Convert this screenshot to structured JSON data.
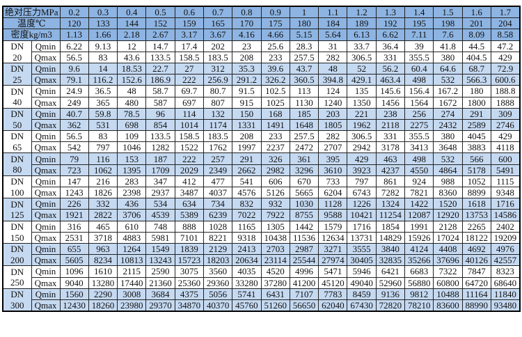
{
  "header": {
    "pressure_label": "绝对压力MPa",
    "temperature_label": "温度℃",
    "density_label": "密度kg/m3",
    "pressures": [
      "0.2",
      "0.3",
      "0.4",
      "0.5",
      "0.6",
      "0.7",
      "0.8",
      "0.9",
      "1",
      "1.1",
      "1.2",
      "1.3",
      "1.4",
      "1.5",
      "1.6",
      "1.7"
    ],
    "temperatures": [
      "120",
      "133",
      "144",
      "152",
      "159",
      "165",
      "170",
      "175",
      "180",
      "184",
      "189",
      "192",
      "195",
      "198",
      "201",
      "204"
    ],
    "densities": [
      "1.13",
      "1.66",
      "2.18",
      "2.67",
      "3.17",
      "3.67",
      "4.16",
      "4.66",
      "5.15",
      "5.64",
      "6.13",
      "6.62",
      "7.11",
      "7.6",
      "8.09",
      "8.58"
    ]
  },
  "dn_label": "DN",
  "qmin_label": "Qmin",
  "qmax_label": "Qmax",
  "colors": {
    "header": "#8db4e2",
    "band": "#c5d9f1",
    "white": "#ffffff"
  },
  "groups": [
    {
      "size": "20",
      "qmin": [
        "6.22",
        "9.13",
        "12",
        "14.7",
        "17.4",
        "202",
        "23",
        "25.6",
        "28.3",
        "31",
        "33.7",
        "36.4",
        "39",
        "41.8",
        "44.5",
        "47.2"
      ],
      "qmax": [
        "56.5",
        "83",
        "43.6",
        "133.5",
        "158.5",
        "183.5",
        "208",
        "233",
        "257.5",
        "282",
        "306.5",
        "331",
        "355.5",
        "380",
        "404.5",
        "429"
      ]
    },
    {
      "size": "25",
      "qmin": [
        "9.6",
        "14",
        "18.53",
        "22.7",
        "27",
        "312",
        "35.3",
        "39.6",
        "43.7",
        "48",
        "52",
        "56.2",
        "60.4",
        "64.6",
        "68.7",
        "72.9"
      ],
      "qmax": [
        "79.1",
        "116.2",
        "152.6",
        "186.9",
        "222",
        "256.9",
        "291.2",
        "326.2",
        "360.5",
        "394.8",
        "429.1",
        "463.4",
        "498",
        "532",
        "566.3",
        "600.6"
      ]
    },
    {
      "size": "40",
      "qmin": [
        "24.9",
        "36.5",
        "48",
        "58.7",
        "69.7",
        "80.7",
        "91.5",
        "102.5",
        "113",
        "124",
        "135",
        "145.6",
        "156.4",
        "167.2",
        "180",
        "188.8"
      ],
      "qmax": [
        "249",
        "365",
        "480",
        "587",
        "697",
        "807",
        "915",
        "1025",
        "1130",
        "1240",
        "1350",
        "1456",
        "1564",
        "1672",
        "1800",
        "1888"
      ]
    },
    {
      "size": "50",
      "qmin": [
        "40.7",
        "59.8",
        "78.5",
        "96",
        "114",
        "132",
        "150",
        "168",
        "185",
        "203",
        "221",
        "238",
        "256",
        "274",
        "291",
        "309"
      ],
      "qmax": [
        "362",
        "531",
        "698",
        "854",
        "1014",
        "1174",
        "1331",
        "1491",
        "1648",
        "1805",
        "1962",
        "2118",
        "2275",
        "2432",
        "2589",
        "2746"
      ]
    },
    {
      "size": "65",
      "qmin": [
        "56.5",
        "83",
        "109",
        "133.5",
        "158.5",
        "183.5",
        "208",
        "233",
        "257.5",
        "282",
        "306.5",
        "331",
        "355.5",
        "380",
        "4045",
        "429"
      ],
      "qmax": [
        "542",
        "797",
        "1046",
        "1282",
        "1522",
        "1762",
        "1997",
        "2237",
        "2472",
        "2707",
        "2942",
        "3178",
        "3413",
        "3648",
        "3883",
        "4118"
      ]
    },
    {
      "size": "80",
      "qmin": [
        "79",
        "116",
        "153",
        "187",
        "222",
        "257",
        "291",
        "326",
        "361",
        "395",
        "429",
        "463",
        "498",
        "532",
        "566",
        "600"
      ],
      "qmax": [
        "723",
        "1062",
        "1395",
        "1709",
        "2029",
        "2349",
        "2662",
        "2982",
        "3296",
        "3610",
        "3923",
        "4237",
        "4550",
        "4864",
        "5178",
        "5491"
      ]
    },
    {
      "size": "100",
      "qmin": [
        "147",
        "216",
        "283",
        "347",
        "412",
        "477",
        "541",
        "606",
        "670",
        "733",
        "797",
        "861",
        "924",
        "988",
        "1052",
        "1115"
      ],
      "qmax": [
        "1243",
        "1826",
        "2398",
        "2937",
        "3487",
        "4037",
        "4576",
        "5126",
        "5665",
        "6204",
        "6743",
        "7282",
        "7821",
        "8360",
        "8899",
        "9348"
      ]
    },
    {
      "size": "125",
      "qmin": [
        "226",
        "332",
        "436",
        "534",
        "634",
        "734",
        "832",
        "932",
        "1030",
        "1128",
        "1226",
        "1324",
        "1422",
        "1520",
        "1618",
        "1716"
      ],
      "qmax": [
        "1921",
        "2822",
        "3706",
        "4539",
        "5389",
        "6239",
        "7022",
        "7922",
        "8755",
        "9588",
        "10421",
        "11254",
        "12087",
        "12920",
        "13753",
        "14586"
      ]
    },
    {
      "size": "150",
      "qmin": [
        "316",
        "465",
        "610",
        "748",
        "888",
        "1028",
        "1165",
        "1305",
        "1442",
        "1579",
        "1716",
        "1854",
        "1991",
        "2128",
        "2265",
        "2402"
      ],
      "qmax": [
        "2531",
        "3718",
        "4883",
        "5981",
        "7101",
        "8221",
        "9318",
        "10438",
        "11536",
        "12634",
        "13731",
        "14829",
        "15926",
        "17024",
        "18122",
        "19209"
      ]
    },
    {
      "size": "200",
      "qmin": [
        "655",
        "963",
        "1264",
        "1549",
        "1839",
        "2129",
        "2413",
        "2703",
        "2987",
        "3271",
        "3555",
        "3840",
        "4124",
        "4408",
        "4692",
        "4976"
      ],
      "qmax": [
        "5605",
        "8234",
        "10813",
        "13243",
        "15723",
        "18203",
        "20634",
        "23114",
        "25544",
        "27974",
        "30405",
        "32835",
        "35266",
        "37696",
        "40126",
        "42557"
      ]
    },
    {
      "size": "250",
      "qmin": [
        "1096",
        "1610",
        "2115",
        "2590",
        "3075",
        "3560",
        "4035",
        "4520",
        "4996",
        "5471",
        "5946",
        "6421",
        "6683",
        "7322",
        "7847",
        "8323"
      ],
      "qmax": [
        "9040",
        "13280",
        "17440",
        "21360",
        "25360",
        "29360",
        "33280",
        "37280",
        "41200",
        "45120",
        "49040",
        "52960",
        "56880",
        "60800",
        "64720",
        "68640"
      ]
    },
    {
      "size": "300",
      "qmin": [
        "1560",
        "2290",
        "3008",
        "3684",
        "4375",
        "5056",
        "5741",
        "6431",
        "7107",
        "7783",
        "8459",
        "9136",
        "9812",
        "10488",
        "11164",
        "11840"
      ],
      "qmax": [
        "12430",
        "18260",
        "23980",
        "29370",
        "34870",
        "40370",
        "45760",
        "51260",
        "56650",
        "62040",
        "67430",
        "72820",
        "78210",
        "83600",
        "88990",
        "93480"
      ]
    }
  ]
}
